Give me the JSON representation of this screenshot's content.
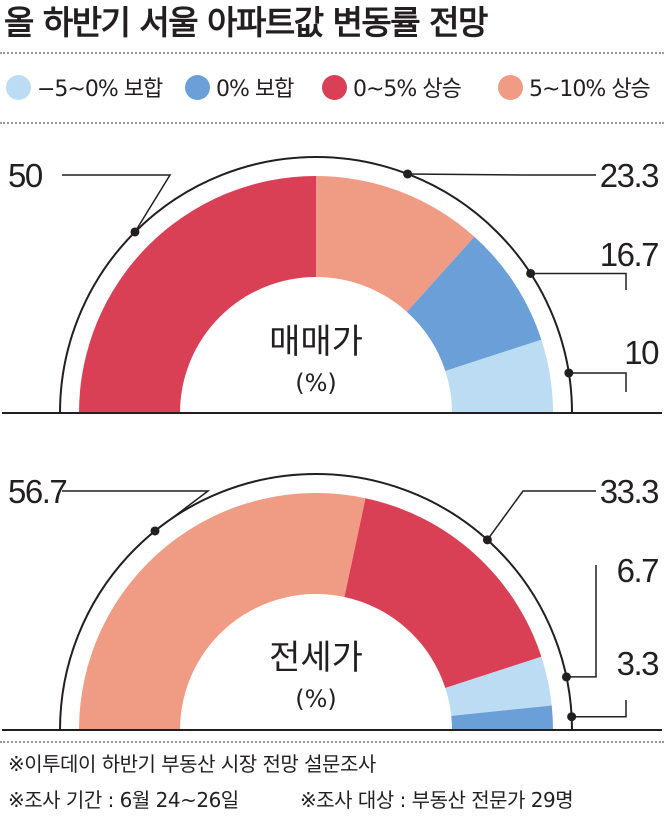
{
  "title": "올 하반기 서울 아파트값 변동률 전망",
  "legend": [
    {
      "label": "−5~0% 보합",
      "color": "#bcdcf3"
    },
    {
      "label": "0% 보합",
      "color": "#6b9fd8"
    },
    {
      "label": "0~5% 상승",
      "color": "#d93f55"
    },
    {
      "label": "5~10% 상승",
      "color": "#f09b84"
    }
  ],
  "chart_data": [
    {
      "type": "pie",
      "subtype": "semi-donut",
      "title": "매매가",
      "unit": "(%)",
      "slices": [
        {
          "category": "0~5% 상승",
          "value": 50,
          "label": "50"
        },
        {
          "category": "5~10% 상승",
          "value": 23.3,
          "label": "23.3"
        },
        {
          "category": "0% 보합",
          "value": 16.7,
          "label": "16.7"
        },
        {
          "category": "−5~0% 보합",
          "value": 10,
          "label": "10"
        }
      ]
    },
    {
      "type": "pie",
      "subtype": "semi-donut",
      "title": "전세가",
      "unit": "(%)",
      "slices": [
        {
          "category": "5~10% 상승",
          "value": 56.7,
          "label": "56.7"
        },
        {
          "category": "0~5% 상승",
          "value": 33.3,
          "label": "33.3"
        },
        {
          "category": "−5~0% 보합",
          "value": 6.7,
          "label": "6.7"
        },
        {
          "category": "0% 보합",
          "value": 3.3,
          "label": "3.3"
        }
      ]
    }
  ],
  "footnotes": {
    "source": "※이투데이 하반기 부동산 시장 전망 설문조사",
    "period": "※조사 기간 : 6월 24~26일",
    "target": "※조사 대상 : 부동산 전문가 29명"
  }
}
